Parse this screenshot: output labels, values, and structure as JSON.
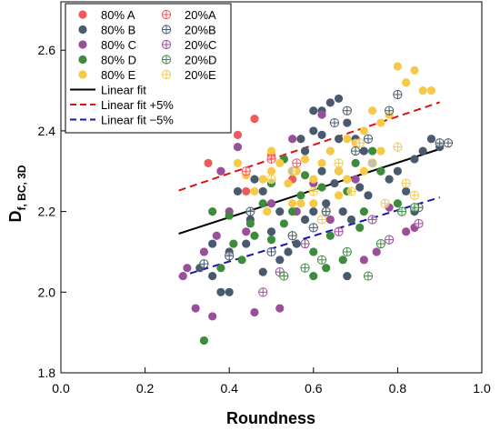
{
  "chart_data": {
    "type": "scatter",
    "xlabel": "Roundness",
    "ylabel_main": "D",
    "ylabel_sub": "f, BC, 3D",
    "xlim": [
      0.0,
      1.0
    ],
    "ylim": [
      1.8,
      2.72
    ],
    "x_ticks": [
      "0.0",
      "0.2",
      "0.4",
      "0.6",
      "0.8",
      "1.0"
    ],
    "y_ticks": [
      "1.8",
      "2.0",
      "2.2",
      "2.4",
      "2.6"
    ],
    "grid": false,
    "legend_position": "top-left",
    "series": [
      {
        "name": "80% A",
        "color": "#ef5a5a",
        "marker": "filled",
        "points": [
          [
            0.46,
            2.43
          ],
          [
            0.42,
            2.39
          ],
          [
            0.38,
            2.3
          ],
          [
            0.5,
            2.34
          ],
          [
            0.35,
            2.32
          ],
          [
            0.55,
            2.28
          ],
          [
            0.44,
            2.25
          ]
        ]
      },
      {
        "name": "80% B",
        "color": "#4a5a6e",
        "marker": "filled",
        "points": [
          [
            0.38,
            2.0
          ],
          [
            0.4,
            2.0
          ],
          [
            0.33,
            2.06
          ],
          [
            0.36,
            2.04
          ],
          [
            0.45,
            2.18
          ],
          [
            0.48,
            2.25
          ],
          [
            0.52,
            2.2
          ],
          [
            0.55,
            2.3
          ],
          [
            0.58,
            2.35
          ],
          [
            0.6,
            2.4
          ],
          [
            0.62,
            2.45
          ],
          [
            0.64,
            2.47
          ],
          [
            0.66,
            2.48
          ],
          [
            0.68,
            2.42
          ],
          [
            0.7,
            2.38
          ],
          [
            0.72,
            2.35
          ],
          [
            0.74,
            2.32
          ],
          [
            0.76,
            2.3
          ],
          [
            0.8,
            2.3
          ],
          [
            0.84,
            2.33
          ],
          [
            0.86,
            2.35
          ],
          [
            0.88,
            2.38
          ],
          [
            0.9,
            2.36
          ],
          [
            0.5,
            2.15
          ],
          [
            0.44,
            2.12
          ],
          [
            0.42,
            2.25
          ],
          [
            0.46,
            2.28
          ],
          [
            0.54,
            2.1
          ],
          [
            0.56,
            2.12
          ],
          [
            0.6,
            2.2
          ],
          [
            0.63,
            2.22
          ],
          [
            0.65,
            2.27
          ],
          [
            0.67,
            2.2
          ],
          [
            0.69,
            2.18
          ],
          [
            0.71,
            2.26
          ],
          [
            0.73,
            2.24
          ],
          [
            0.62,
            2.3
          ],
          [
            0.58,
            2.18
          ],
          [
            0.78,
            2.28
          ],
          [
            0.82,
            2.25
          ],
          [
            0.4,
            2.1
          ],
          [
            0.36,
            2.12
          ],
          [
            0.48,
            2.05
          ],
          [
            0.52,
            2.08
          ],
          [
            0.57,
            2.38
          ],
          [
            0.62,
            2.39
          ],
          [
            0.6,
            2.45
          ],
          [
            0.66,
            2.38
          ],
          [
            0.68,
            2.04
          ],
          [
            0.84,
            2.2
          ]
        ]
      },
      {
        "name": "80% C",
        "color": "#9a4f9a",
        "marker": "filled",
        "points": [
          [
            0.32,
            1.96
          ],
          [
            0.36,
            1.94
          ],
          [
            0.29,
            2.04
          ],
          [
            0.3,
            2.06
          ],
          [
            0.34,
            2.1
          ],
          [
            0.37,
            2.14
          ],
          [
            0.4,
            2.2
          ],
          [
            0.44,
            2.15
          ],
          [
            0.46,
            1.95
          ],
          [
            0.52,
            1.96
          ],
          [
            0.5,
            2.22
          ],
          [
            0.56,
            2.2
          ],
          [
            0.6,
            2.27
          ],
          [
            0.64,
            2.18
          ],
          [
            0.7,
            2.28
          ],
          [
            0.72,
            2.08
          ],
          [
            0.75,
            2.1
          ],
          [
            0.78,
            2.21
          ],
          [
            0.82,
            2.15
          ],
          [
            0.84,
            2.16
          ],
          [
            0.55,
            2.38
          ],
          [
            0.62,
            2.44
          ],
          [
            0.38,
            2.3
          ],
          [
            0.42,
            2.36
          ]
        ]
      },
      {
        "name": "80% D",
        "color": "#3d8c3d",
        "marker": "filled",
        "points": [
          [
            0.34,
            1.88
          ],
          [
            0.38,
            2.06
          ],
          [
            0.41,
            2.12
          ],
          [
            0.43,
            2.08
          ],
          [
            0.46,
            2.14
          ],
          [
            0.48,
            2.22
          ],
          [
            0.5,
            2.13
          ],
          [
            0.53,
            2.17
          ],
          [
            0.55,
            2.2
          ],
          [
            0.57,
            2.24
          ],
          [
            0.6,
            2.1
          ],
          [
            0.62,
            2.26
          ],
          [
            0.64,
            2.14
          ],
          [
            0.66,
            2.3
          ],
          [
            0.68,
            2.25
          ],
          [
            0.7,
            2.32
          ],
          [
            0.72,
            2.2
          ],
          [
            0.74,
            2.35
          ],
          [
            0.76,
            2.3
          ],
          [
            0.8,
            2.22
          ],
          [
            0.36,
            2.2
          ],
          [
            0.4,
            2.19
          ],
          [
            0.45,
            2.17
          ],
          [
            0.58,
            2.29
          ],
          [
            0.63,
            2.06
          ],
          [
            0.67,
            2.08
          ],
          [
            0.71,
            2.16
          ],
          [
            0.5,
            2.27
          ],
          [
            0.53,
            2.33
          ],
          [
            0.6,
            2.04
          ]
        ]
      },
      {
        "name": "80% E",
        "color": "#f7c948",
        "marker": "filled",
        "points": [
          [
            0.42,
            2.32
          ],
          [
            0.44,
            2.29
          ],
          [
            0.46,
            2.25
          ],
          [
            0.48,
            2.28
          ],
          [
            0.5,
            2.3
          ],
          [
            0.52,
            2.32
          ],
          [
            0.54,
            2.27
          ],
          [
            0.56,
            2.3
          ],
          [
            0.58,
            2.33
          ],
          [
            0.6,
            2.28
          ],
          [
            0.62,
            2.32
          ],
          [
            0.64,
            2.35
          ],
          [
            0.66,
            2.3
          ],
          [
            0.68,
            2.38
          ],
          [
            0.7,
            2.37
          ],
          [
            0.72,
            2.4
          ],
          [
            0.74,
            2.45
          ],
          [
            0.76,
            2.42
          ],
          [
            0.78,
            2.44
          ],
          [
            0.8,
            2.56
          ],
          [
            0.82,
            2.52
          ],
          [
            0.84,
            2.55
          ],
          [
            0.86,
            2.5
          ],
          [
            0.88,
            2.5
          ],
          [
            0.49,
            2.2
          ],
          [
            0.55,
            2.22
          ],
          [
            0.6,
            2.22
          ],
          [
            0.66,
            2.24
          ],
          [
            0.72,
            2.3
          ],
          [
            0.76,
            2.35
          ],
          [
            0.5,
            2.35
          ],
          [
            0.57,
            2.22
          ],
          [
            0.63,
            2.2
          ],
          [
            0.68,
            2.28
          ]
        ]
      },
      {
        "name": "20%A",
        "color": "#ef5a5a",
        "marker": "open",
        "points": [
          [
            0.44,
            2.3
          ],
          [
            0.5,
            2.33
          ],
          [
            0.56,
            2.32
          ]
        ]
      },
      {
        "name": "20%B",
        "color": "#4a5a6e",
        "marker": "open",
        "points": [
          [
            0.34,
            2.07
          ],
          [
            0.4,
            2.09
          ],
          [
            0.5,
            2.1
          ],
          [
            0.55,
            2.14
          ],
          [
            0.6,
            2.16
          ],
          [
            0.65,
            2.42
          ],
          [
            0.68,
            2.45
          ],
          [
            0.7,
            2.35
          ],
          [
            0.73,
            2.38
          ],
          [
            0.78,
            2.45
          ],
          [
            0.8,
            2.49
          ],
          [
            0.85,
            2.21
          ],
          [
            0.9,
            2.37
          ],
          [
            0.92,
            2.37
          ],
          [
            0.63,
            2.2
          ],
          [
            0.45,
            2.2
          ]
        ]
      },
      {
        "name": "20%C",
        "color": "#9a4f9a",
        "marker": "open",
        "points": [
          [
            0.48,
            2.0
          ],
          [
            0.52,
            2.05
          ],
          [
            0.58,
            2.12
          ],
          [
            0.66,
            2.15
          ],
          [
            0.74,
            2.18
          ],
          [
            0.78,
            2.13
          ],
          [
            0.85,
            2.17
          ]
        ]
      },
      {
        "name": "20%D",
        "color": "#3d8c3d",
        "marker": "open",
        "points": [
          [
            0.53,
            2.04
          ],
          [
            0.58,
            2.06
          ],
          [
            0.62,
            2.08
          ],
          [
            0.68,
            2.1
          ],
          [
            0.73,
            2.04
          ],
          [
            0.76,
            2.12
          ],
          [
            0.81,
            2.2
          ],
          [
            0.84,
            2.21
          ]
        ]
      },
      {
        "name": "20%E",
        "color": "#f7c948",
        "marker": "open",
        "points": [
          [
            0.5,
            2.28
          ],
          [
            0.55,
            2.3
          ],
          [
            0.6,
            2.25
          ],
          [
            0.66,
            2.32
          ],
          [
            0.71,
            2.37
          ],
          [
            0.74,
            2.32
          ],
          [
            0.8,
            2.36
          ],
          [
            0.82,
            2.27
          ],
          [
            0.84,
            2.24
          ],
          [
            0.77,
            2.22
          ],
          [
            0.69,
            2.25
          ],
          [
            0.62,
            2.18
          ]
        ]
      }
    ],
    "fit_lines": [
      {
        "name": "Linear fit",
        "color": "#000000",
        "dash": "solid",
        "x": [
          0.28,
          0.9
        ],
        "y": [
          2.145,
          2.355
        ]
      },
      {
        "name": "Linear fit +5%",
        "color": "#e01010",
        "dash": "dashed",
        "x": [
          0.28,
          0.9
        ],
        "y": [
          2.252,
          2.471
        ]
      },
      {
        "name": "Linear fit −5%",
        "color": "#1616b0",
        "dash": "dashed",
        "x": [
          0.28,
          0.9
        ],
        "y": [
          2.038,
          2.235
        ]
      }
    ]
  }
}
